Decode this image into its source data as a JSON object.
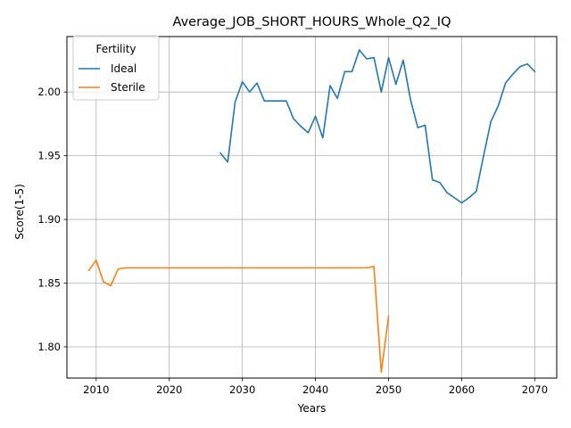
{
  "chart_data": {
    "type": "line",
    "title": "Average_JOB_SHORT_HOURS_Whole_Q2_IQ",
    "xlabel": "Years",
    "ylabel": "Score(1-5)",
    "xlim": [
      2006,
      2073
    ],
    "ylim": [
      1.7755,
      2.0435
    ],
    "xticks": [
      2010,
      2020,
      2030,
      2040,
      2050,
      2060,
      2070
    ],
    "yticks": [
      1.8,
      1.85,
      1.9,
      1.95,
      2.0
    ],
    "xtick_labels": [
      "2010",
      "2020",
      "2030",
      "2040",
      "2050",
      "2060",
      "2070"
    ],
    "ytick_labels": [
      "1.80",
      "1.85",
      "1.90",
      "1.95",
      "2.00"
    ],
    "grid": true,
    "legend": {
      "title": "Fertility",
      "position": "upper-left"
    },
    "series": [
      {
        "name": "Ideal",
        "color": "#1f77b4",
        "x": [
          2027,
          2028,
          2029,
          2030,
          2031,
          2032,
          2033,
          2034,
          2035,
          2036,
          2037,
          2038,
          2039,
          2040,
          2041,
          2042,
          2043,
          2044,
          2045,
          2046,
          2047,
          2048,
          2049,
          2050,
          2051,
          2052,
          2053,
          2054,
          2055,
          2056,
          2057,
          2058,
          2059,
          2060,
          2061,
          2062,
          2063,
          2064,
          2065,
          2066,
          2067,
          2068,
          2069,
          2070
        ],
        "y": [
          1.952,
          1.945,
          1.992,
          2.008,
          2.0,
          2.007,
          1.993,
          1.993,
          1.993,
          1.993,
          1.979,
          1.973,
          1.968,
          1.981,
          1.964,
          2.005,
          1.995,
          2.016,
          2.016,
          2.033,
          2.026,
          2.027,
          2.0,
          2.027,
          2.006,
          2.025,
          1.994,
          1.972,
          1.974,
          1.931,
          1.929,
          1.921,
          1.917,
          1.913,
          1.917,
          1.922,
          1.95,
          1.977,
          1.989,
          2.007,
          2.014,
          2.02,
          2.022,
          2.016
        ]
      },
      {
        "name": "Sterile",
        "color": "#ff7f0e",
        "x": [
          2009,
          2010,
          2011,
          2012,
          2013,
          2014,
          2015,
          2016,
          2017,
          2018,
          2019,
          2020,
          2021,
          2022,
          2023,
          2024,
          2025,
          2026,
          2027,
          2028,
          2029,
          2030,
          2031,
          2032,
          2033,
          2034,
          2035,
          2036,
          2037,
          2038,
          2039,
          2040,
          2041,
          2042,
          2043,
          2044,
          2045,
          2046,
          2047,
          2048,
          2049,
          2050
        ],
        "y": [
          1.86,
          1.868,
          1.851,
          1.848,
          1.861,
          1.862,
          1.862,
          1.862,
          1.862,
          1.862,
          1.862,
          1.862,
          1.862,
          1.862,
          1.862,
          1.862,
          1.862,
          1.862,
          1.862,
          1.862,
          1.862,
          1.862,
          1.862,
          1.862,
          1.862,
          1.862,
          1.862,
          1.862,
          1.862,
          1.862,
          1.862,
          1.862,
          1.862,
          1.862,
          1.862,
          1.862,
          1.862,
          1.862,
          1.862,
          1.863,
          1.78,
          1.824
        ]
      }
    ]
  }
}
